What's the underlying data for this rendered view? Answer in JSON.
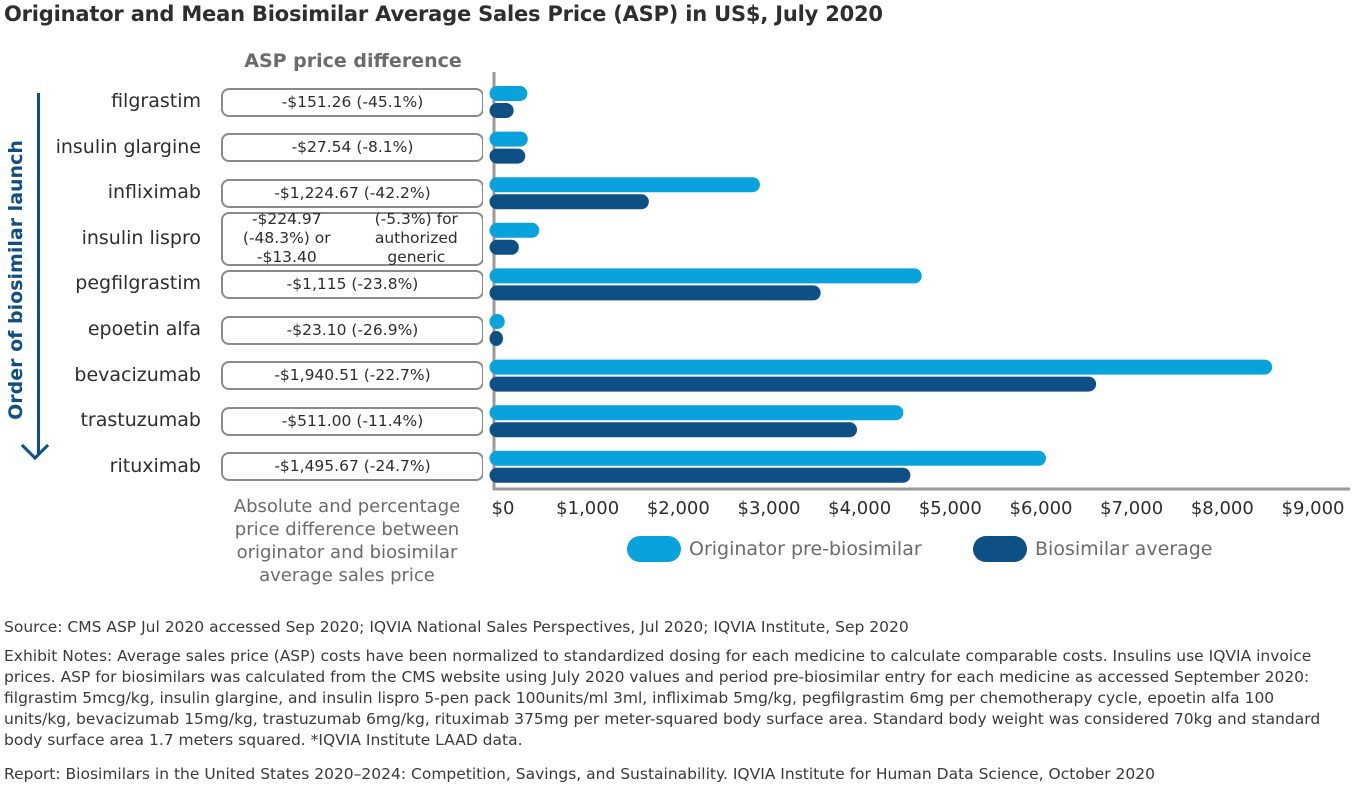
{
  "title": "Originator and Mean Biosimilar Average Sales Price (ASP) in US$, July 2020",
  "diff_header": "ASP price difference",
  "order_label": "Order of biosimilar launch",
  "diff_caption": "Absolute and percentage price difference between originator and biosimilar average sales price",
  "colors": {
    "originator": "#0aa2dc",
    "biosimilar": "#0e4f86",
    "axis": "#9a9a9a",
    "box_border": "#8a8a8a"
  },
  "rows": [
    {
      "drug": "filgrastim",
      "diff": [
        "-$151.26 (-45.1%)"
      ]
    },
    {
      "drug": "insulin glargine",
      "diff": [
        "-$27.54 (-8.1%)"
      ]
    },
    {
      "drug": "infliximab",
      "diff": [
        "-$1,224.67 (-42.2%)"
      ]
    },
    {
      "drug": "insulin lispro",
      "diff": [
        "-$224.97 (-48.3%) or -$13.40",
        "(-5.3%) for authorized generic"
      ]
    },
    {
      "drug": "pegfilgrastim",
      "diff": [
        "-$1,115 (-23.8%)"
      ]
    },
    {
      "drug": "epoetin alfa",
      "diff": [
        "-$23.10 (-26.9%)"
      ]
    },
    {
      "drug": "bevacizumab",
      "diff": [
        "-$1,940.51 (-22.7%)"
      ]
    },
    {
      "drug": "trastuzumab",
      "diff": [
        "-$511.00 (-11.4%)"
      ]
    },
    {
      "drug": "rituximab",
      "diff": [
        "-$1,495.67 (-24.7%)"
      ]
    }
  ],
  "chart_data": {
    "type": "bar",
    "orientation": "horizontal",
    "title": "Originator and Mean Biosimilar Average Sales Price (ASP) in US$, July 2020",
    "categories": [
      "filgrastim",
      "insulin glargine",
      "infliximab",
      "insulin lispro",
      "pegfilgrastim",
      "epoetin alfa",
      "bevacizumab",
      "trastuzumab",
      "rituximab"
    ],
    "series": [
      {
        "name": "Originator pre-biosimilar",
        "values": [
          335,
          340,
          2900,
          466,
          4685,
          86,
          8549,
          4482,
          6055
        ]
      },
      {
        "name": "Biosimilar average",
        "values": [
          184,
          312,
          1675,
          241,
          3570,
          63,
          6608,
          3971,
          4560
        ]
      }
    ],
    "xlim": [
      0,
      9000
    ],
    "xticks": [
      "$0",
      "$1,000",
      "$2,000",
      "$3,000",
      "$4,000",
      "$5,000",
      "$6,000",
      "$7,000",
      "$8,000",
      "$9,000"
    ],
    "xtick_values": [
      0,
      1000,
      2000,
      3000,
      4000,
      5000,
      6000,
      7000,
      8000,
      9000
    ],
    "xlabel": "",
    "ylabel": "",
    "legend": "bottom",
    "grid": false
  },
  "legend": {
    "originator": "Originator pre-biosimilar",
    "biosimilar": "Biosimilar average"
  },
  "notes": {
    "source": "Source: CMS ASP Jul 2020 accessed Sep 2020; IQVIA National Sales Perspectives, Jul 2020; IQVIA Institute, Sep 2020",
    "exhibit": "Exhibit Notes: Average sales price (ASP) costs have been normalized to standardized dosing for each medicine to calculate comparable costs. Insulins use IQVIA invoice prices. ASP for biosimilars was calculated from the CMS website using July 2020 values and period pre-biosimilar entry for each medicine as accessed September 2020: filgrastim 5mcg/kg, insulin glargine, and insulin lispro 5-pen pack 100units/ml 3ml, infliximab 5mg/kg, pegfilgrastim 6mg per chemotherapy cycle, epoetin alfa 100 units/kg, bevacizumab 15mg/kg, trastuzumab 6mg/kg, rituximab 375mg per meter-squared body surface area. Standard body weight was considered 70kg and standard body surface area 1.7 meters squared. *IQVIA Institute LAAD data.",
    "report": "Report: Biosimilars in the United States 2020–2024: Competition, Savings, and Sustainability. IQVIA Institute for Human Data Science, October 2020"
  }
}
